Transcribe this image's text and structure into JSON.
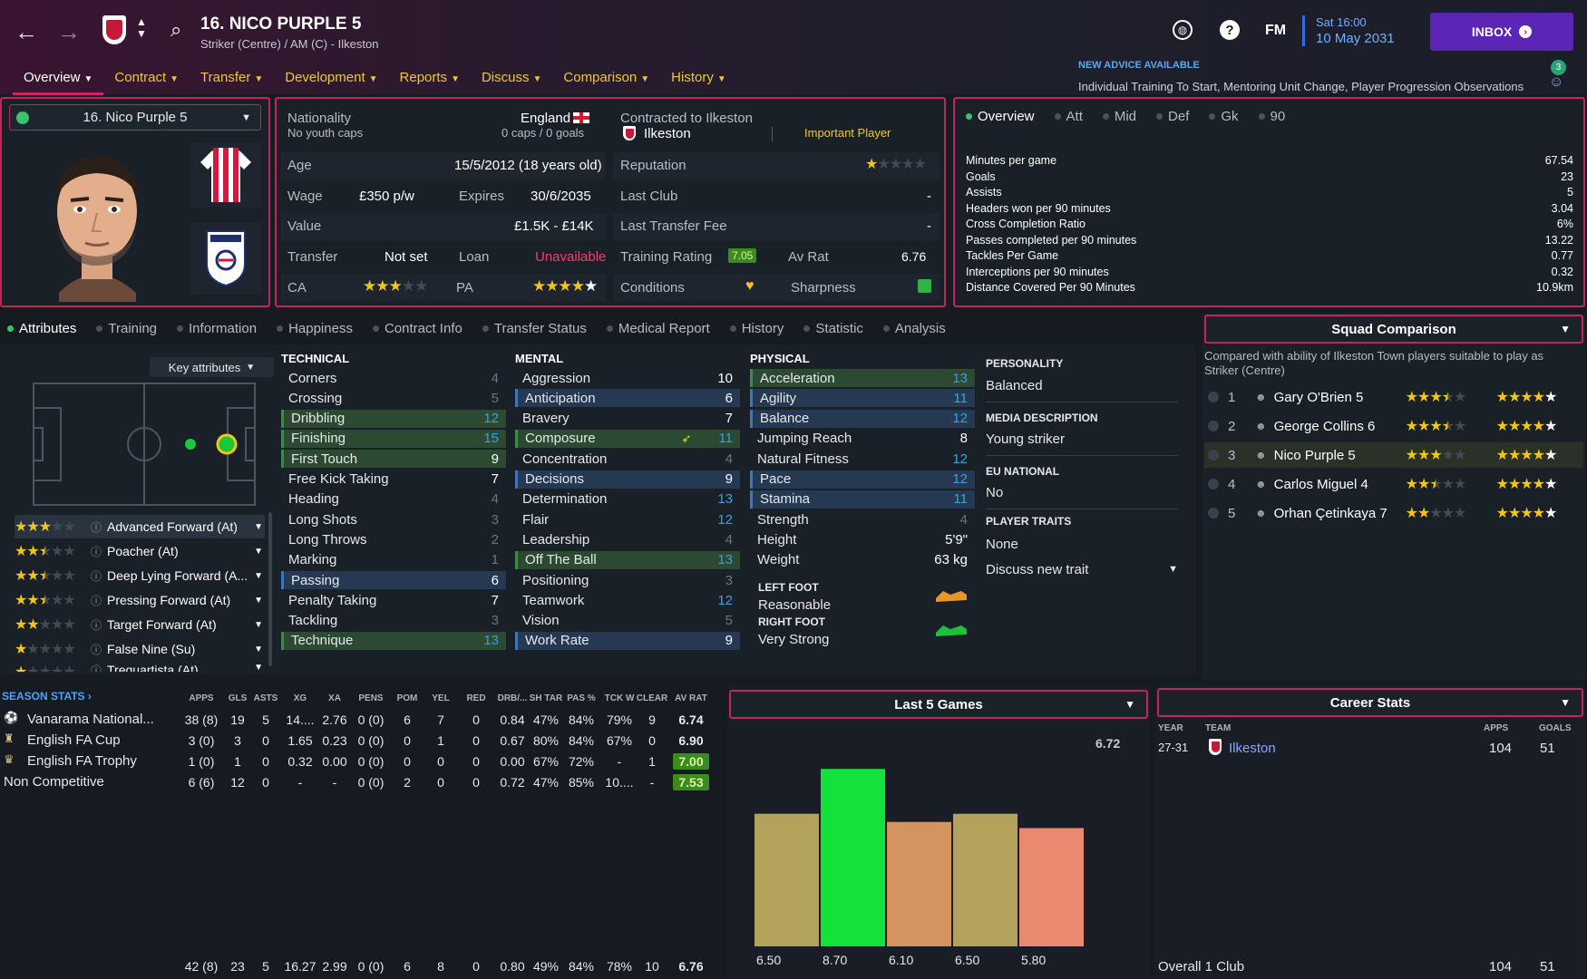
{
  "header": {
    "title": "16. NICO PURPLE 5",
    "subtitle": "Striker (Centre) / AM (C) - Ilkeston",
    "time": "Sat 16:00",
    "date": "10 May 2031",
    "inbox_label": "INBOX",
    "fm_label": "FM",
    "advice_title": "NEW ADVICE AVAILABLE",
    "advice_text": "Individual Training To Start, Mentoring Unit Change, Player Progression Observations",
    "advice_count": "3"
  },
  "menu": [
    "Overview",
    "Contract",
    "Transfer",
    "Development",
    "Reports",
    "Discuss",
    "Comparison",
    "History"
  ],
  "player_select": "16. Nico Purple 5",
  "info": {
    "nationality_label": "Nationality",
    "nationality": "England",
    "youth_caps": "No youth caps",
    "caps": "0 caps / 0 goals",
    "contracted_label": "Contracted to Ilkeston",
    "club": "Ilkeston",
    "status": "Important Player",
    "age_label": "Age",
    "age": "15/5/2012 (18 years old)",
    "wage_label": "Wage",
    "wage": "£350 p/w",
    "expires_label": "Expires",
    "expires": "30/6/2035",
    "value_label": "Value",
    "value": "£1.5K - £14K",
    "transfer_label": "Transfer",
    "transfer": "Not set",
    "loan_label": "Loan",
    "loan": "Unavailable",
    "ca_label": "CA",
    "pa_label": "PA",
    "reputation_label": "Reputation",
    "last_club_label": "Last Club",
    "last_club": "-",
    "last_fee_label": "Last Transfer Fee",
    "last_fee": "-",
    "training_label": "Training Rating",
    "training": "7.05",
    "avrat_label": "Av Rat",
    "avrat": "6.76",
    "conditions_label": "Conditions",
    "sharpness_label": "Sharpness"
  },
  "overview_tabs": [
    "Overview",
    "Att",
    "Mid",
    "Def",
    "Gk",
    "90"
  ],
  "overview_stats": [
    {
      "label": "Minutes per game",
      "value": "67.54"
    },
    {
      "label": "Goals",
      "value": "23"
    },
    {
      "label": "Assists",
      "value": "5"
    },
    {
      "label": "Headers won per 90 minutes",
      "value": "3.04"
    },
    {
      "label": "Cross Completion Ratio",
      "value": "6%"
    },
    {
      "label": "Passes completed per 90 minutes",
      "value": "13.22"
    },
    {
      "label": "Tackles Per Game",
      "value": "0.77"
    },
    {
      "label": "Interceptions per 90 minutes",
      "value": "0.32"
    },
    {
      "label": "Distance Covered Per 90 Minutes",
      "value": "10.9km"
    }
  ],
  "section_tabs": [
    "Attributes",
    "Training",
    "Information",
    "Happiness",
    "Contract Info",
    "Transfer Status",
    "Medical Report",
    "History",
    "Statistic",
    "Analysis"
  ],
  "key_attributes_label": "Key attributes",
  "roles": [
    {
      "name": "Advanced Forward (At)",
      "stars": [
        1,
        1,
        1,
        0,
        0
      ]
    },
    {
      "name": "Poacher (At)",
      "stars": [
        1,
        1,
        0.5,
        0,
        0
      ]
    },
    {
      "name": "Deep Lying Forward (A...",
      "stars": [
        1,
        1,
        0.5,
        0,
        0
      ]
    },
    {
      "name": "Pressing Forward (At)",
      "stars": [
        1,
        1,
        0.5,
        0,
        0
      ]
    },
    {
      "name": "Target Forward (At)",
      "stars": [
        1,
        1,
        0,
        0,
        0
      ]
    },
    {
      "name": "False Nine (Su)",
      "stars": [
        1,
        0,
        0,
        0,
        0
      ]
    },
    {
      "name": "Trequartista (At)",
      "stars": [
        1,
        0,
        0,
        0,
        0
      ]
    }
  ],
  "technical": {
    "title": "TECHNICAL",
    "attrs": [
      {
        "name": "Corners",
        "value": "4",
        "hl": "",
        "c": "grey"
      },
      {
        "name": "Crossing",
        "value": "5",
        "hl": "",
        "c": "grey"
      },
      {
        "name": "Dribbling",
        "value": "12",
        "hl": "green",
        "c": "blue"
      },
      {
        "name": "Finishing",
        "value": "15",
        "hl": "green",
        "c": "blue"
      },
      {
        "name": "First Touch",
        "value": "9",
        "hl": "green",
        "c": "white"
      },
      {
        "name": "Free Kick Taking",
        "value": "7",
        "hl": "",
        "c": "white"
      },
      {
        "name": "Heading",
        "value": "4",
        "hl": "",
        "c": "grey"
      },
      {
        "name": "Long Shots",
        "value": "3",
        "hl": "",
        "c": "grey"
      },
      {
        "name": "Long Throws",
        "value": "2",
        "hl": "",
        "c": "grey"
      },
      {
        "name": "Marking",
        "value": "1",
        "hl": "",
        "c": "grey"
      },
      {
        "name": "Passing",
        "value": "6",
        "hl": "blue",
        "c": "white"
      },
      {
        "name": "Penalty Taking",
        "value": "7",
        "hl": "",
        "c": "white"
      },
      {
        "name": "Tackling",
        "value": "3",
        "hl": "",
        "c": "grey"
      },
      {
        "name": "Technique",
        "value": "13",
        "hl": "green",
        "c": "blue"
      }
    ]
  },
  "mental": {
    "title": "MENTAL",
    "attrs": [
      {
        "name": "Aggression",
        "value": "10",
        "hl": "",
        "c": "white"
      },
      {
        "name": "Anticipation",
        "value": "6",
        "hl": "blue",
        "c": "white"
      },
      {
        "name": "Bravery",
        "value": "7",
        "hl": "",
        "c": "white"
      },
      {
        "name": "Composure",
        "value": "11",
        "hl": "green",
        "c": "blue"
      },
      {
        "name": "Concentration",
        "value": "4",
        "hl": "",
        "c": "grey"
      },
      {
        "name": "Decisions",
        "value": "9",
        "hl": "blue",
        "c": "white"
      },
      {
        "name": "Determination",
        "value": "13",
        "hl": "",
        "c": "blue"
      },
      {
        "name": "Flair",
        "value": "12",
        "hl": "",
        "c": "blue"
      },
      {
        "name": "Leadership",
        "value": "4",
        "hl": "",
        "c": "grey"
      },
      {
        "name": "Off The Ball",
        "value": "13",
        "hl": "green",
        "c": "blue"
      },
      {
        "name": "Positioning",
        "value": "3",
        "hl": "",
        "c": "grey"
      },
      {
        "name": "Teamwork",
        "value": "12",
        "hl": "",
        "c": "blue"
      },
      {
        "name": "Vision",
        "value": "5",
        "hl": "",
        "c": "grey"
      },
      {
        "name": "Work Rate",
        "value": "9",
        "hl": "blue",
        "c": "white"
      }
    ]
  },
  "physical": {
    "title": "PHYSICAL",
    "attrs": [
      {
        "name": "Acceleration",
        "value": "13",
        "hl": "green",
        "c": "blue"
      },
      {
        "name": "Agility",
        "value": "11",
        "hl": "blue",
        "c": "blue"
      },
      {
        "name": "Balance",
        "value": "12",
        "hl": "blue",
        "c": "blue"
      },
      {
        "name": "Jumping Reach",
        "value": "8",
        "hl": "",
        "c": "white"
      },
      {
        "name": "Natural Fitness",
        "value": "12",
        "hl": "",
        "c": "blue"
      },
      {
        "name": "Pace",
        "value": "12",
        "hl": "blue",
        "c": "blue"
      },
      {
        "name": "Stamina",
        "value": "11",
        "hl": "blue",
        "c": "blue"
      },
      {
        "name": "Strength",
        "value": "4",
        "hl": "",
        "c": "grey"
      },
      {
        "name": "Height",
        "value": "5'9\"",
        "hl": "",
        "c": "white"
      },
      {
        "name": "Weight",
        "value": "63 kg",
        "hl": "",
        "c": "white"
      }
    ],
    "left_foot_label": "LEFT FOOT",
    "left_foot": "Reasonable",
    "right_foot_label": "RIGHT FOOT",
    "right_foot": "Very Strong"
  },
  "personality": {
    "personality_label": "PERSONALITY",
    "personality": "Balanced",
    "media_label": "MEDIA DESCRIPTION",
    "media": "Young striker",
    "eu_label": "EU NATIONAL",
    "eu": "No",
    "traits_label": "PLAYER TRAITS",
    "traits": "None",
    "discuss": "Discuss new trait"
  },
  "squad": {
    "title": "Squad Comparison",
    "desc": "Compared with ability of Ilkeston Town players suitable to play as Striker (Centre)",
    "rows": [
      {
        "rank": "1",
        "name": "Gary O'Brien 5",
        "ca": [
          1,
          1,
          1,
          0.5,
          0
        ],
        "pa": [
          1,
          1,
          1,
          1,
          1
        ]
      },
      {
        "rank": "2",
        "name": "George Collins 6",
        "ca": [
          1,
          1,
          1,
          0.5,
          0
        ],
        "pa": [
          1,
          1,
          1,
          1,
          1
        ]
      },
      {
        "rank": "3",
        "name": "Nico Purple 5",
        "ca": [
          1,
          1,
          1,
          0,
          0
        ],
        "pa": [
          1,
          1,
          1,
          1,
          1
        ]
      },
      {
        "rank": "4",
        "name": "Carlos Miguel 4",
        "ca": [
          1,
          1,
          0.5,
          0,
          0
        ],
        "pa": [
          1,
          1,
          1,
          1,
          1
        ]
      },
      {
        "rank": "5",
        "name": "Orhan Çetinkaya 7",
        "ca": [
          1,
          1,
          0,
          0,
          0
        ],
        "pa": [
          1,
          1,
          1,
          1,
          1
        ]
      }
    ]
  },
  "season_stats": {
    "title": "SEASON STATS",
    "headers": [
      "APPS",
      "GLS",
      "ASTS",
      "XG",
      "XA",
      "PENS",
      "POM",
      "YEL",
      "RED",
      "DRB/...",
      "SH TAR",
      "PAS %",
      "TCK W",
      "CLEAR",
      "AV RAT"
    ],
    "rows": [
      {
        "comp": "Vanarama National...",
        "vals": [
          "38 (8)",
          "19",
          "5",
          "14....",
          "2.76",
          "0 (0)",
          "6",
          "7",
          "0",
          "0.84",
          "47%",
          "84%",
          "79%",
          "9",
          "6.74"
        ],
        "rat_color": ""
      },
      {
        "comp": "English FA Cup",
        "vals": [
          "3 (0)",
          "3",
          "0",
          "1.65",
          "0.23",
          "0 (0)",
          "0",
          "1",
          "0",
          "0.67",
          "80%",
          "84%",
          "67%",
          "0",
          "6.90"
        ],
        "rat_color": ""
      },
      {
        "comp": "English FA Trophy",
        "vals": [
          "1 (0)",
          "1",
          "0",
          "0.32",
          "0.00",
          "0 (0)",
          "0",
          "0",
          "0",
          "0.00",
          "67%",
          "72%",
          "-",
          "1",
          "7.00"
        ],
        "rat_color": "#3c8b1f"
      },
      {
        "comp": "Non Competitive",
        "vals": [
          "6 (6)",
          "12",
          "0",
          "-",
          "-",
          "0 (0)",
          "2",
          "0",
          "0",
          "0.72",
          "47%",
          "85%",
          "10....",
          "-",
          "7.53"
        ],
        "rat_color": "#3c8b1f"
      }
    ],
    "totals": [
      "42 (8)",
      "23",
      "5",
      "16.27",
      "2.99",
      "0 (0)",
      "6",
      "8",
      "0",
      "0.80",
      "49%",
      "84%",
      "78%",
      "10",
      "6.76"
    ]
  },
  "last5": {
    "title": "Last 5 Games",
    "average": "6.72",
    "values": [
      6.5,
      8.7,
      6.1,
      6.5,
      5.8
    ],
    "labels": [
      "6.50",
      "8.70",
      "6.10",
      "6.50",
      "5.80"
    ],
    "colors": [
      "#b3a35a",
      "#12e23b",
      "#d5945f",
      "#b3a35a",
      "#e98a70"
    ]
  },
  "career": {
    "title": "Career Stats",
    "year_label": "YEAR",
    "team_label": "TEAM",
    "apps_label": "APPS",
    "goals_label": "GOALS",
    "year": "27-31",
    "team": "Ilkeston",
    "apps": "104",
    "goals": "51",
    "total_label": "Overall 1 Club",
    "total_apps": "104",
    "total_goals": "51"
  }
}
